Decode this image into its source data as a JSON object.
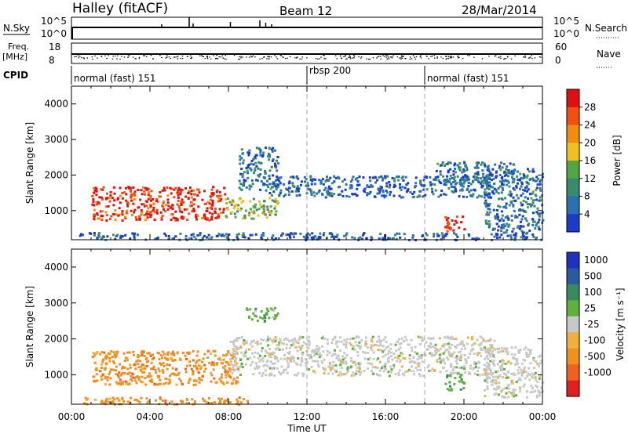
{
  "header": {
    "station": "Halley (fitACF)",
    "beam": "Beam 12",
    "date": "28/Mar/2014"
  },
  "strips": {
    "nsky": {
      "label": "N.Sky",
      "ticks": [
        "10^5",
        "10^0"
      ]
    },
    "nsearch": {
      "label": "N.Search",
      "ticks": [
        "10^5",
        "10^0"
      ]
    },
    "freq": {
      "label_line1": "Freq.",
      "label_line2": "[MHz]",
      "ticks": [
        "18",
        "8"
      ]
    },
    "nave": {
      "label": "Nave",
      "ticks": [
        "60",
        "0"
      ]
    },
    "cpid": {
      "label": "CPID",
      "segments": [
        {
          "name": "normal (fast) 151",
          "start_hour": 0,
          "end_hour": 12
        },
        {
          "name": "rbsp 200",
          "start_hour": 12,
          "end_hour": 18
        },
        {
          "name": "normal (fast) 151",
          "start_hour": 18,
          "end_hour": 24
        }
      ]
    }
  },
  "colors": {
    "power": [
      "#1a3cc8",
      "#2d6fb3",
      "#3a8a70",
      "#52a646",
      "#f0c020",
      "#f08c10",
      "#f05010",
      "#e01010"
    ],
    "velocity": [
      "#e02020",
      "#f06020",
      "#f09020",
      "#f0b040",
      "#c8c8c8",
      "#60b040",
      "#3a8a60",
      "#2a5aa0",
      "#2030c0"
    ]
  },
  "chart_data": [
    {
      "type": "heatmap",
      "panel": "power",
      "xlabel": "Time UT",
      "ylabel": "Slant Range [km]",
      "x_ticks": [
        "00:00",
        "04:00",
        "08:00",
        "12:00",
        "16:00",
        "20:00",
        "00:00"
      ],
      "xlim_hours": [
        0,
        24
      ],
      "y_ticks": [
        1000,
        2000,
        3000,
        4000
      ],
      "ylim_km": [
        180,
        4500
      ],
      "colorbar": {
        "label": "Power [dB]",
        "ticks": [
          4,
          8,
          12,
          16,
          20,
          24,
          28
        ],
        "range": [
          0,
          32
        ]
      },
      "regions": [
        {
          "t0": 1.0,
          "t1": 7.8,
          "r0": 750,
          "r1": 1700,
          "level": 0.9
        },
        {
          "t0": 7.8,
          "t1": 10.5,
          "r0": 800,
          "r1": 1400,
          "level": 0.45
        },
        {
          "t0": 8.5,
          "t1": 10.5,
          "r0": 1600,
          "r1": 2800,
          "level": 0.2
        },
        {
          "t0": 10.0,
          "t1": 21.5,
          "r0": 1400,
          "r1": 2000,
          "level": 0.15
        },
        {
          "t0": 18.5,
          "t1": 22.5,
          "r0": 1800,
          "r1": 2400,
          "level": 0.2
        },
        {
          "t0": 19.0,
          "t1": 20.0,
          "r0": 450,
          "r1": 900,
          "level": 0.95
        },
        {
          "t0": 21.0,
          "t1": 24.0,
          "r0": 400,
          "r1": 2200,
          "level": 0.2
        },
        {
          "t0": 0.3,
          "t1": 24.0,
          "r0": 200,
          "r1": 400,
          "level": 0.15
        }
      ]
    },
    {
      "type": "heatmap",
      "panel": "velocity",
      "xlabel": "Time UT",
      "ylabel": "Slant Range [km]",
      "x_ticks": [
        "00:00",
        "04:00",
        "08:00",
        "12:00",
        "16:00",
        "20:00",
        "00:00"
      ],
      "xlim_hours": [
        0,
        24
      ],
      "y_ticks": [
        1000,
        2000,
        3000,
        4000
      ],
      "ylim_km": [
        180,
        4500
      ],
      "colorbar": {
        "label": "Velocity [m s⁻¹]",
        "ticks": [
          "1000",
          "500",
          "100",
          "25",
          "-25",
          "-100",
          "-500",
          "-1000"
        ]
      },
      "regions": [
        {
          "t0": 1.0,
          "t1": 8.5,
          "r0": 750,
          "r1": 1700,
          "vclass": "-100"
        },
        {
          "t0": 8.0,
          "t1": 21.5,
          "r0": 1000,
          "r1": 2100,
          "vclass": "0"
        },
        {
          "t0": 8.8,
          "t1": 10.5,
          "r0": 2500,
          "r1": 2900,
          "vclass": "100"
        },
        {
          "t0": 19.0,
          "t1": 20.0,
          "r0": 600,
          "r1": 1100,
          "vclass": "100"
        },
        {
          "t0": 21.0,
          "t1": 24.0,
          "r0": 400,
          "r1": 1800,
          "vclass": "0"
        },
        {
          "t0": 0.5,
          "t1": 9.0,
          "r0": 200,
          "r1": 400,
          "vclass": "-100"
        }
      ]
    }
  ]
}
